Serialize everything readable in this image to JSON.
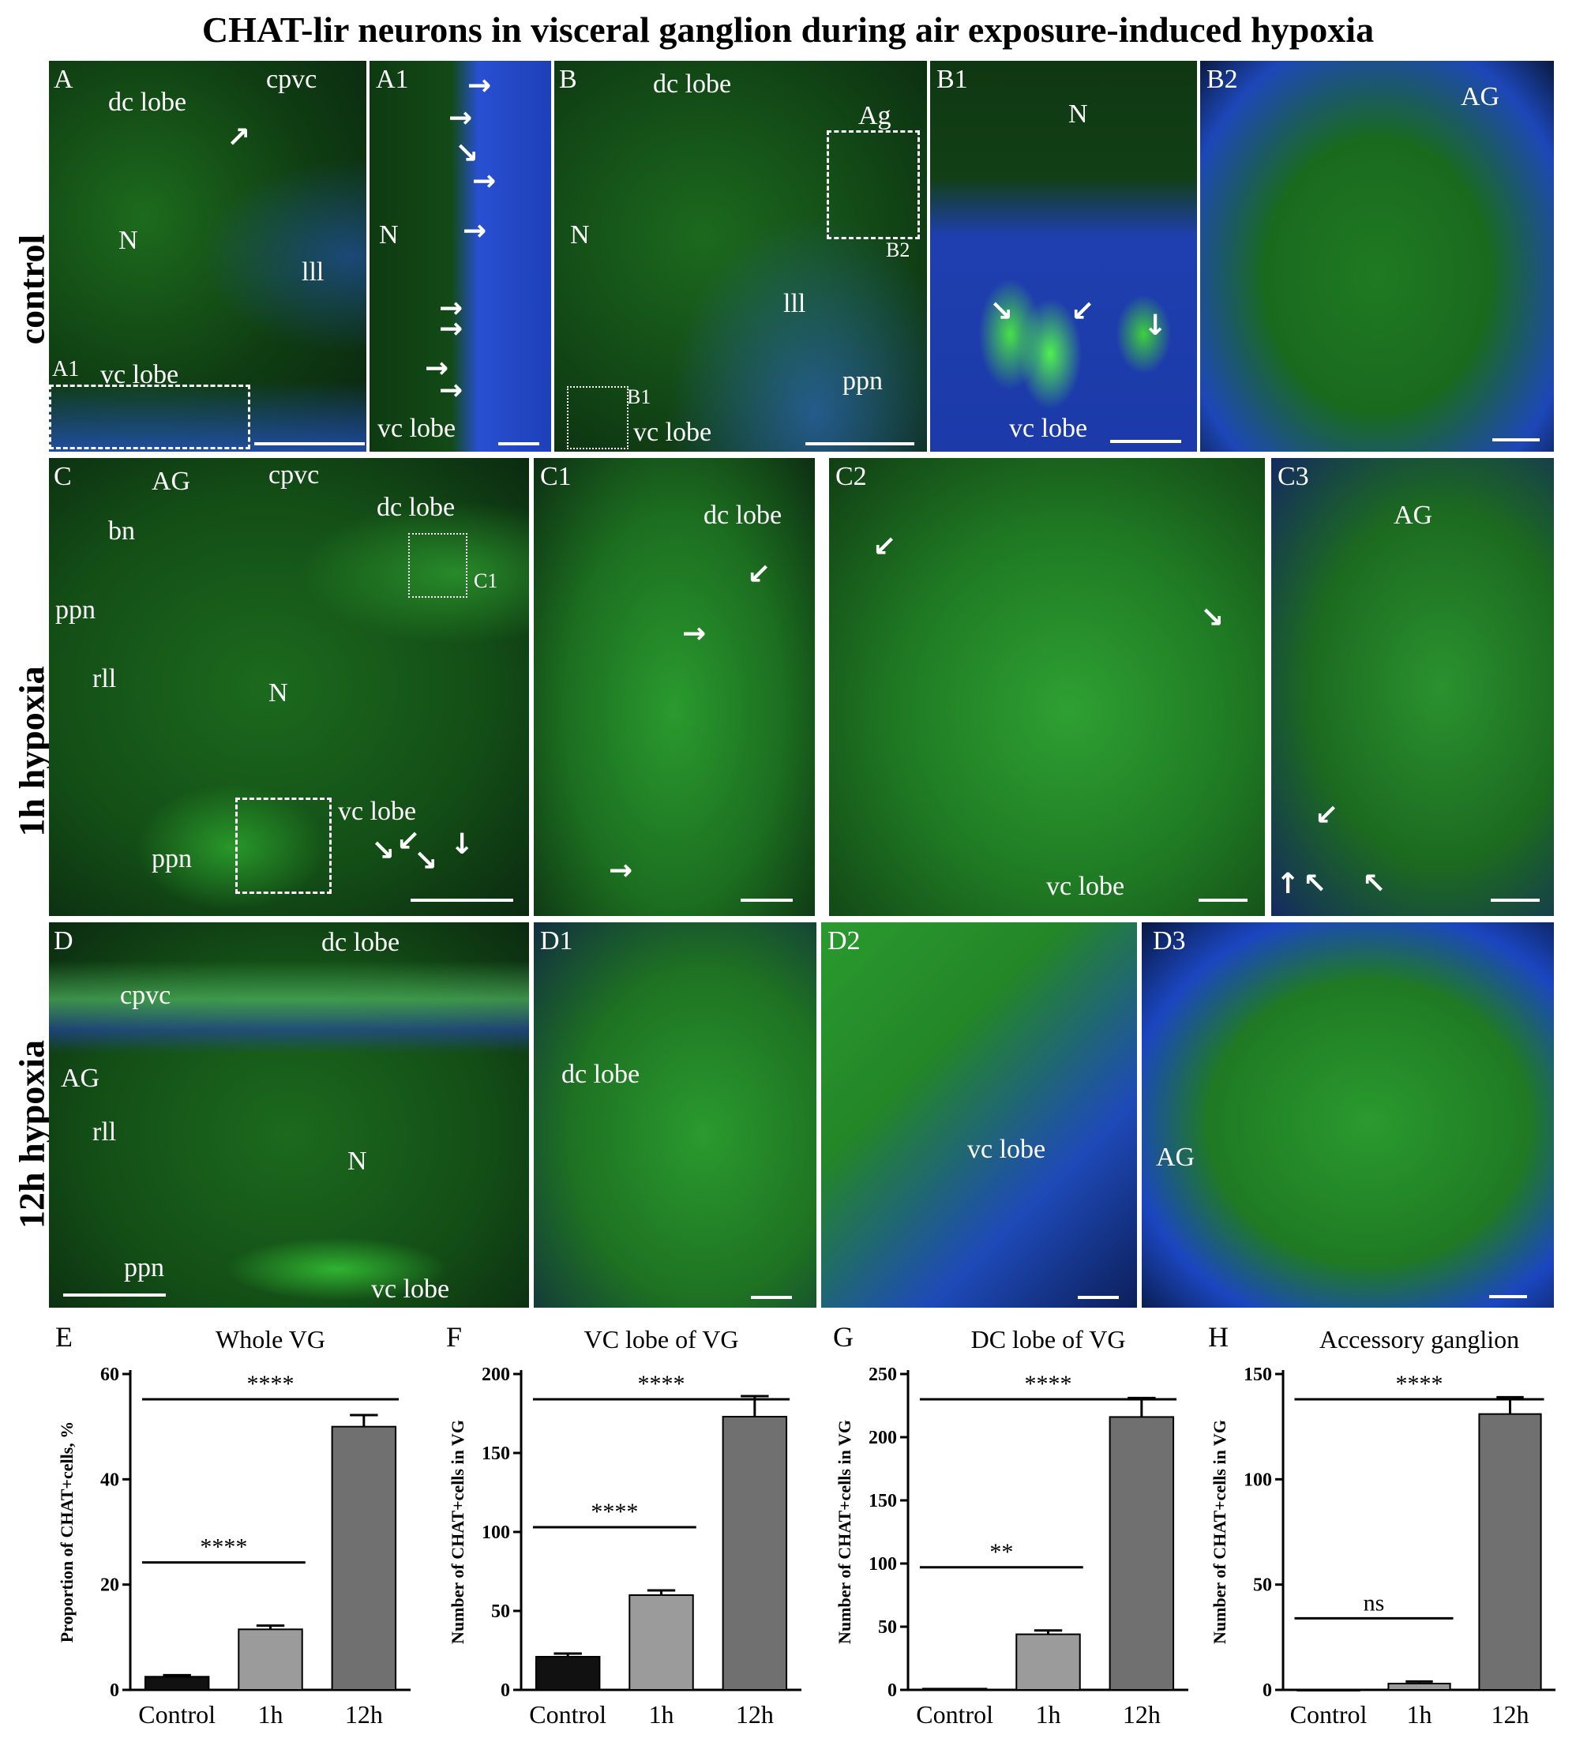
{
  "figure_title": "CHAT-lir neurons in visceral ganglion during air exposure-induced hypoxia",
  "rows": [
    "control",
    "1h hypoxia",
    "12h hypoxia"
  ],
  "panels": {
    "A": {
      "id": "A",
      "labels": [
        "dc lobe",
        "cpvc",
        "N",
        "lll",
        "vc lobe",
        "A1"
      ]
    },
    "A1": {
      "id": "A1",
      "labels": [
        "N",
        "vc lobe"
      ]
    },
    "B": {
      "id": "B",
      "labels": [
        "dc lobe",
        "Ag",
        "N",
        "B2",
        "lll",
        "ppn",
        "B1",
        "vc lobe"
      ]
    },
    "B1": {
      "id": "B1",
      "labels": [
        "N",
        "vc lobe"
      ]
    },
    "B2": {
      "id": "B2",
      "labels": [
        "AG"
      ]
    },
    "C": {
      "id": "C",
      "labels": [
        "AG",
        "cpvc",
        "dc lobe",
        "bn",
        "C1",
        "ppn",
        "rll",
        "N",
        "vc lobe",
        "ppn"
      ]
    },
    "C1": {
      "id": "C1",
      "labels": [
        "dc lobe"
      ]
    },
    "C2": {
      "id": "C2",
      "labels": [
        "vc lobe"
      ]
    },
    "C3": {
      "id": "C3",
      "labels": [
        "AG"
      ]
    },
    "D": {
      "id": "D",
      "labels": [
        "dc lobe",
        "cpvc",
        "AG",
        "rll",
        "N",
        "ppn",
        "vc lobe"
      ]
    },
    "D1": {
      "id": "D1",
      "labels": [
        "dc lobe"
      ]
    },
    "D2": {
      "id": "D2",
      "labels": [
        "vc lobe"
      ]
    },
    "D3": {
      "id": "D3",
      "labels": [
        "AG"
      ]
    }
  },
  "colors": {
    "nuclei": "#1a3fe0",
    "chat": "#3ee03e",
    "bar_control": "#111111",
    "bar_1h": "#9b9b9b",
    "bar_12h": "#707070"
  },
  "chart_data": [
    {
      "letter": "E",
      "type": "bar",
      "title": "Whole VG",
      "ylabel": "Proportion of CHAT+cells, %",
      "categories": [
        "Control",
        "1h",
        "12h"
      ],
      "values": [
        2.5,
        11.5,
        50
      ],
      "errors": [
        0.3,
        0.7,
        2.2
      ],
      "ylim": [
        0,
        60
      ],
      "yticks": [
        0,
        20,
        40,
        60
      ],
      "significance": [
        {
          "from": 0,
          "to": 1,
          "label": "****"
        },
        {
          "from": 0,
          "to": 2,
          "label": "****"
        }
      ]
    },
    {
      "letter": "F",
      "type": "bar",
      "title": "VC lobe of VG",
      "ylabel": "Number of CHAT+cells in VG",
      "categories": [
        "Control",
        "1h",
        "12h"
      ],
      "values": [
        21,
        60,
        173
      ],
      "errors": [
        2,
        3,
        13
      ],
      "ylim": [
        0,
        200
      ],
      "yticks": [
        0,
        50,
        100,
        150,
        200
      ],
      "significance": [
        {
          "from": 0,
          "to": 1,
          "label": "****"
        },
        {
          "from": 0,
          "to": 2,
          "label": "****"
        }
      ]
    },
    {
      "letter": "G",
      "type": "bar",
      "title": "DC lobe of VG",
      "ylabel": "Number of CHAT+cells in VG",
      "categories": [
        "Control",
        "1h",
        "12h"
      ],
      "values": [
        1,
        44,
        216
      ],
      "errors": [
        0,
        3,
        15
      ],
      "ylim": [
        0,
        250
      ],
      "yticks": [
        0,
        50,
        100,
        150,
        200,
        250
      ],
      "significance": [
        {
          "from": 0,
          "to": 1,
          "label": "**"
        },
        {
          "from": 0,
          "to": 2,
          "label": "****"
        }
      ]
    },
    {
      "letter": "H",
      "type": "bar",
      "title": "Accessory ganglion",
      "ylabel": "Number of CHAT+cells in VG",
      "categories": [
        "Control",
        "1h",
        "12h"
      ],
      "values": [
        0,
        3,
        131
      ],
      "errors": [
        0,
        1,
        8
      ],
      "ylim": [
        0,
        150
      ],
      "yticks": [
        0,
        50,
        100,
        150
      ],
      "significance": [
        {
          "from": 0,
          "to": 1,
          "label": "ns"
        },
        {
          "from": 0,
          "to": 2,
          "label": "****"
        }
      ]
    }
  ]
}
